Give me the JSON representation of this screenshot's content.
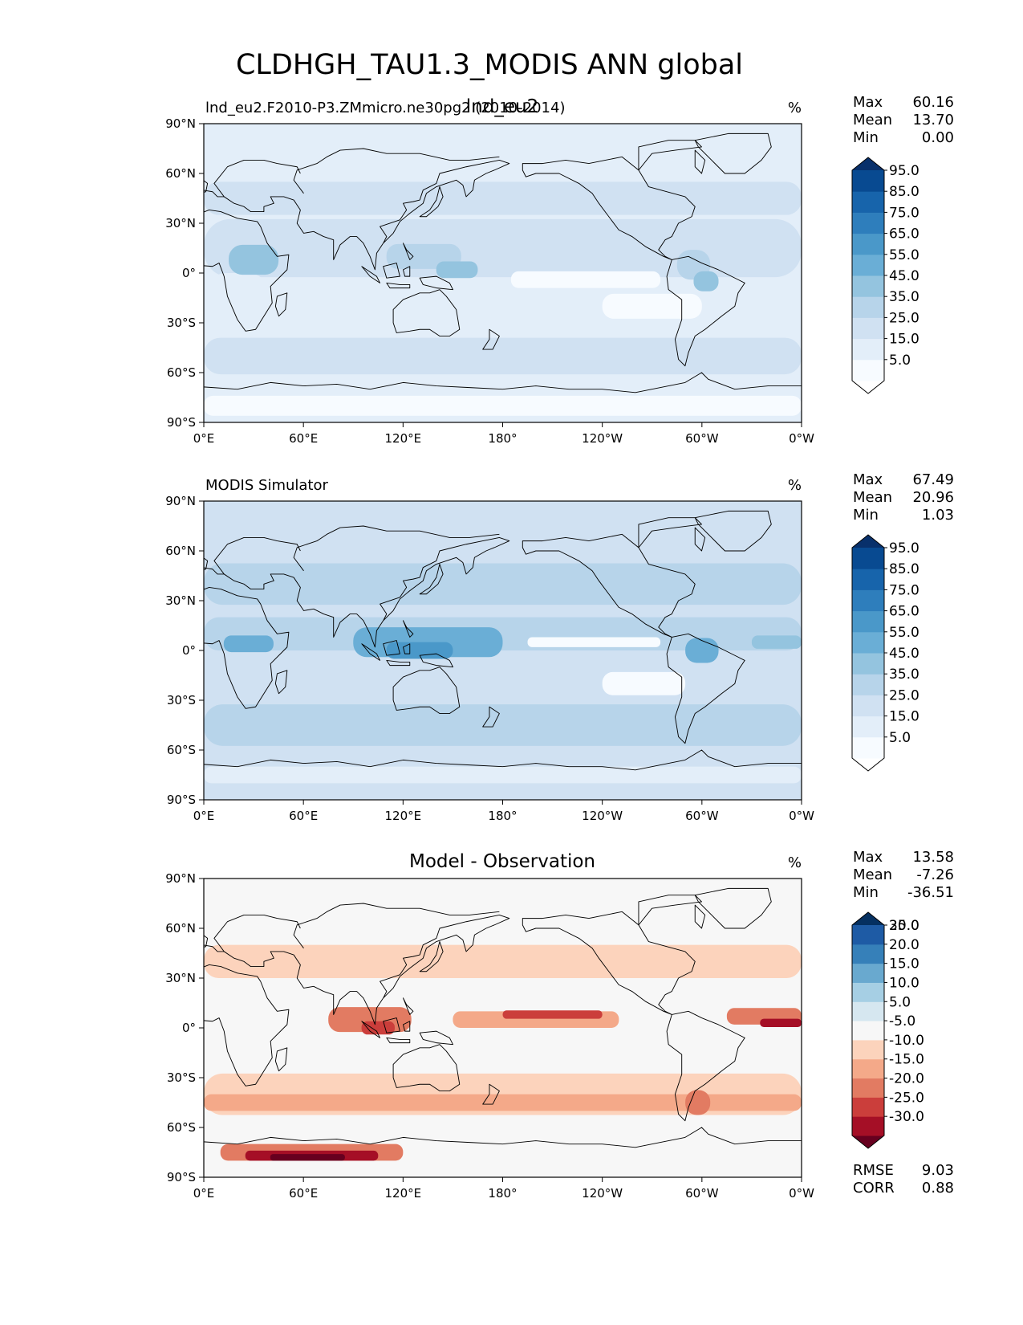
{
  "figure": {
    "title": "CLDHGH_TAU1.3_MODIS ANN global"
  },
  "axes": {
    "lat_labels": [
      "90°N",
      "60°N",
      "30°N",
      "0°",
      "30°S",
      "60°S",
      "90°S"
    ],
    "lon_labels": [
      "0°E",
      "60°E",
      "120°E",
      "180°",
      "120°W",
      "60°W",
      "0°W"
    ]
  },
  "panels": [
    {
      "left_title": "lnd_eu2.F2010-P3.ZMmicro.ne30pg2 (2010-2014)",
      "center_title": "lnd_eu2",
      "units": "%",
      "stats": [
        {
          "label": "Max",
          "value": "60.16"
        },
        {
          "label": "Mean",
          "value": "13.70"
        },
        {
          "label": "Min",
          "value": "0.00"
        }
      ],
      "colorbar": {
        "colors": [
          "#f7fbff",
          "#deebf7",
          "#c6dbef",
          "#9ecae1",
          "#6baed6",
          "#4292c6",
          "#2171b5",
          "#08519c",
          "#08306b"
        ],
        "all_colors": [
          "#ffffff",
          "#f7fbff",
          "#e3eef9",
          "#d0e1f2",
          "#b7d4ea",
          "#94c4df",
          "#6aaed6",
          "#4a98c9",
          "#2e7ebc",
          "#1764ab",
          "#084a91",
          "#08306b"
        ],
        "tick_labels": [
          "5.0",
          "15.0",
          "25.0",
          "35.0",
          "45.0",
          "55.0",
          "65.0",
          "75.0",
          "85.0",
          "95.0"
        ]
      }
    },
    {
      "left_title": "MODIS Simulator",
      "center_title": "",
      "units": "%",
      "stats": [
        {
          "label": "Max",
          "value": "67.49"
        },
        {
          "label": "Mean",
          "value": "20.96"
        },
        {
          "label": "Min",
          "value": "1.03"
        }
      ],
      "colorbar": {
        "all_colors": [
          "#ffffff",
          "#f7fbff",
          "#e3eef9",
          "#d0e1f2",
          "#b7d4ea",
          "#94c4df",
          "#6aaed6",
          "#4a98c9",
          "#2e7ebc",
          "#1764ab",
          "#084a91",
          "#08306b"
        ],
        "tick_labels": [
          "5.0",
          "15.0",
          "25.0",
          "35.0",
          "45.0",
          "55.0",
          "65.0",
          "75.0",
          "85.0",
          "95.0"
        ]
      }
    },
    {
      "left_title": "",
      "center_title": "Model - Observation",
      "units": "%",
      "stats": [
        {
          "label": "Max",
          "value": "13.58"
        },
        {
          "label": "Mean",
          "value": "-7.26"
        },
        {
          "label": "Min",
          "value": "-36.51"
        }
      ],
      "extra_stats": [
        {
          "label": "RMSE",
          "value": "9.03"
        },
        {
          "label": "CORR",
          "value": "0.88"
        }
      ],
      "colorbar": {
        "all_colors": [
          "#67001f",
          "#a50f26",
          "#cb3e3b",
          "#e27b62",
          "#f4a989",
          "#fcd3bc",
          "#f7f7f7",
          "#d6e7f0",
          "#a6cfe4",
          "#69a9cf",
          "#3680b9",
          "#1e5ba5",
          "#053061"
        ],
        "tick_labels": [
          "-30.0",
          "-25.0",
          "-20.0",
          "-15.0",
          "-10.0",
          "-5.0",
          "5.0",
          "10.0",
          "15.0",
          "20.0",
          "25.0",
          "30.0"
        ]
      }
    }
  ],
  "map_colors": {
    "model_background": "#e8f1fa",
    "obs_background": "#d4e4f3",
    "diff_background": "#f7f7f7",
    "coastline": "#000000"
  }
}
